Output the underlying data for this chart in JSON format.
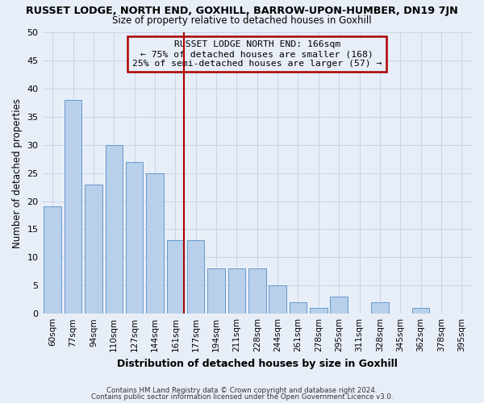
{
  "title": "RUSSET LODGE, NORTH END, GOXHILL, BARROW-UPON-HUMBER, DN19 7JN",
  "subtitle": "Size of property relative to detached houses in Goxhill",
  "xlabel": "Distribution of detached houses by size in Goxhill",
  "ylabel": "Number of detached properties",
  "bar_labels": [
    "60sqm",
    "77sqm",
    "94sqm",
    "110sqm",
    "127sqm",
    "144sqm",
    "161sqm",
    "177sqm",
    "194sqm",
    "211sqm",
    "228sqm",
    "244sqm",
    "261sqm",
    "278sqm",
    "295sqm",
    "311sqm",
    "328sqm",
    "345sqm",
    "362sqm",
    "378sqm",
    "395sqm"
  ],
  "bar_values": [
    19,
    38,
    23,
    30,
    27,
    25,
    13,
    13,
    8,
    8,
    8,
    5,
    2,
    1,
    3,
    0,
    2,
    0,
    1,
    0,
    0
  ],
  "bar_color": "#b8d0ea",
  "bar_edge_color": "#6699cc",
  "grid_color": "#c8d4e8",
  "background_color": "#e8eef8",
  "red_line_index": 6,
  "red_line_color": "#aa0000",
  "ylim": [
    0,
    50
  ],
  "yticks": [
    0,
    5,
    10,
    15,
    20,
    25,
    30,
    35,
    40,
    45,
    50
  ],
  "annotation_title": "RUSSET LODGE NORTH END: 166sqm",
  "annotation_line1": "← 75% of detached houses are smaller (168)",
  "annotation_line2": "25% of semi-detached houses are larger (57) →",
  "annotation_box_edge": "#aa0000",
  "footer1": "Contains HM Land Registry data © Crown copyright and database right 2024.",
  "footer2": "Contains public sector information licensed under the Open Government Licence v3.0."
}
